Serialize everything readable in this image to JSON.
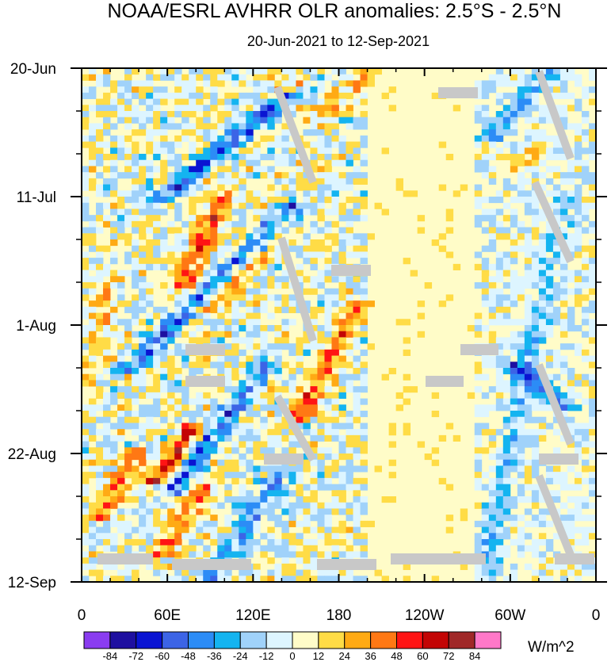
{
  "chart_data": {
    "type": "heatmap",
    "title": "NOAA/ESRL AVHRR OLR anomalies: 2.5°S - 2.5°N",
    "subtitle": "20-Jun-2021 to 12-Sep-2021",
    "x_ticks": [
      "0",
      "60E",
      "120E",
      "180",
      "120W",
      "60W",
      "0"
    ],
    "x_tick_degrees": [
      0,
      60,
      120,
      180,
      240,
      300,
      360
    ],
    "y_ticks": [
      "20-Jun",
      "11-Jul",
      "1-Aug",
      "22-Aug",
      "12-Sep"
    ],
    "y_tick_days": [
      0,
      21,
      42,
      63,
      84
    ],
    "xlim": [
      0,
      360
    ],
    "ylim_days": [
      0,
      84
    ],
    "colorbar": {
      "unit": "W/m^2",
      "labels": [
        "-84",
        "-72",
        "-60",
        "-48",
        "-36",
        "-24",
        "-12",
        "0",
        "12",
        "24",
        "36",
        "48",
        "60",
        "72",
        "84"
      ],
      "colors": [
        "#8a3cf0",
        "#1e0fa0",
        "#0a14d2",
        "#3c64e6",
        "#2c8cf6",
        "#14b4f0",
        "#a0d2fa",
        "#ddf5ff",
        "#fffcc8",
        "#ffdc46",
        "#ffaa14",
        "#ff7814",
        "#ff1414",
        "#c30505",
        "#a02828",
        "#ff78c8"
      ]
    },
    "pattern": {
      "background_value": 6,
      "features": [
        {
          "lon_start": 170,
          "lon_end": 50,
          "day_start": 0,
          "day_end": 22,
          "value": -60
        },
        {
          "lon_start": 150,
          "lon_end": 30,
          "day_start": 22,
          "day_end": 50,
          "value": -48
        },
        {
          "lon_start": 130,
          "lon_end": 60,
          "day_start": 48,
          "day_end": 70,
          "value": -48
        },
        {
          "lon_start": 140,
          "lon_end": 90,
          "day_start": 66,
          "day_end": 84,
          "value": -36
        },
        {
          "lon_start": 100,
          "lon_end": 70,
          "day_start": 20,
          "day_end": 36,
          "value": 48
        },
        {
          "lon_start": 130,
          "lon_end": 85,
          "day_start": 30,
          "day_end": 40,
          "value": 36
        },
        {
          "lon_start": 195,
          "lon_end": 150,
          "day_start": 38,
          "day_end": 58,
          "value": 48
        },
        {
          "lon_start": 80,
          "lon_end": 50,
          "day_start": 58,
          "day_end": 68,
          "value": 60
        },
        {
          "lon_start": 85,
          "lon_end": 55,
          "day_start": 68,
          "day_end": 80,
          "value": 48
        },
        {
          "lon_start": 40,
          "lon_end": 15,
          "day_start": 62,
          "day_end": 74,
          "value": 36
        },
        {
          "lon_start": 20,
          "lon_end": 0,
          "day_start": 34,
          "day_end": 54,
          "value": 24
        },
        {
          "lon_start": 200,
          "lon_end": 160,
          "day_start": 0,
          "day_end": 10,
          "value": 24
        },
        {
          "lon_start": 330,
          "lon_end": 290,
          "day_start": 12,
          "day_end": 18,
          "value": 24
        },
        {
          "lon_start": 300,
          "lon_end": 340,
          "day_start": 48,
          "day_end": 56,
          "value": -48
        },
        {
          "lon_start": 330,
          "lon_end": 285,
          "day_start": 0,
          "day_end": 12,
          "value": -36
        },
        {
          "lon_start": 340,
          "lon_end": 280,
          "day_start": 20,
          "day_end": 84,
          "value": -24
        },
        {
          "lon_start": 170,
          "lon_end": 140,
          "day_start": 0,
          "day_end": 4,
          "value": 60
        }
      ]
    }
  }
}
